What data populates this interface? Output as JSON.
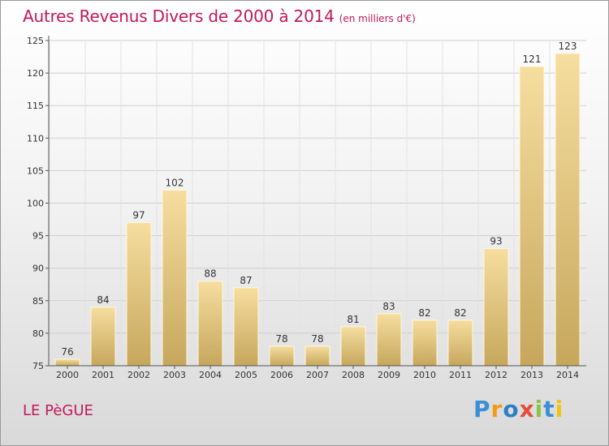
{
  "title": "Autres Revenus Divers de 2000 à 2014",
  "subtitle": "(en milliers d'€)",
  "location": "LE PèGUE",
  "logo": {
    "text": "Proxiti",
    "colors": [
      "#3a8fd6",
      "#f39c12",
      "#2c7fc7",
      "#e74c3c",
      "#8bc34a",
      "#3a8fd6",
      "#f1c40f"
    ]
  },
  "colors": {
    "title": "#c2185b",
    "bar_light": "#f5dc9a",
    "bar_dark": "#c9aa5f",
    "axis": "#555555",
    "grid": "#cccccc"
  },
  "chart_data": {
    "type": "bar",
    "categories": [
      "2000",
      "2001",
      "2002",
      "2003",
      "2004",
      "2005",
      "2006",
      "2007",
      "2008",
      "2009",
      "2010",
      "2011",
      "2012",
      "2013",
      "2014"
    ],
    "values": [
      76,
      84,
      97,
      102,
      88,
      87,
      78,
      78,
      81,
      83,
      82,
      82,
      93,
      121,
      123
    ],
    "ylim": [
      75,
      125
    ],
    "yticks": [
      75,
      80,
      85,
      90,
      95,
      100,
      105,
      110,
      115,
      120,
      125
    ],
    "grid": true,
    "legend": "none"
  }
}
